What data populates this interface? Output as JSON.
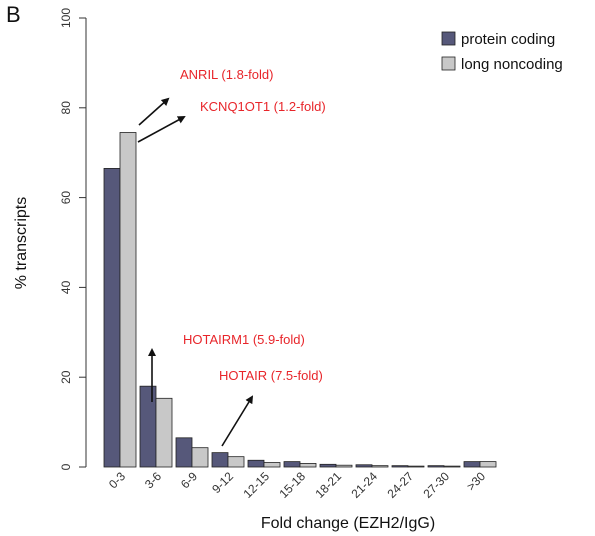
{
  "panel_label": "B",
  "chart_data": {
    "type": "bar",
    "categories": [
      "0-3",
      "3-6",
      "6-9",
      "9-12",
      "12-15",
      "15-18",
      "18-21",
      "21-24",
      "24-27",
      "27-30",
      ">30"
    ],
    "series": [
      {
        "name": "protein coding",
        "values": [
          66.5,
          18,
          6.5,
          3.2,
          1.5,
          1.2,
          0.6,
          0.5,
          0.3,
          0.3,
          1.2
        ],
        "color": "#56587a"
      },
      {
        "name": "long noncoding",
        "values": [
          74.5,
          15.3,
          4.3,
          2.3,
          1.0,
          0.8,
          0.4,
          0.3,
          0.2,
          0.2,
          1.2
        ],
        "color": "#c8c8c8"
      }
    ],
    "title": "",
    "xlabel": "Fold change (EZH2/IgG)",
    "ylabel": "% transcripts",
    "ylim": [
      0,
      100
    ],
    "yticks": [
      0,
      20,
      40,
      60,
      80,
      100
    ],
    "grid": false,
    "legend": "top-right",
    "annotations": [
      {
        "text": "ANRIL (1.8-fold)",
        "color": "#e8252a"
      },
      {
        "text": "KCNQ1OT1 (1.2-fold)",
        "color": "#e8252a"
      },
      {
        "text": "HOTAIRM1 (5.9-fold)",
        "color": "#e8252a"
      },
      {
        "text": "HOTAIR (7.5-fold)",
        "color": "#e8252a"
      }
    ]
  }
}
